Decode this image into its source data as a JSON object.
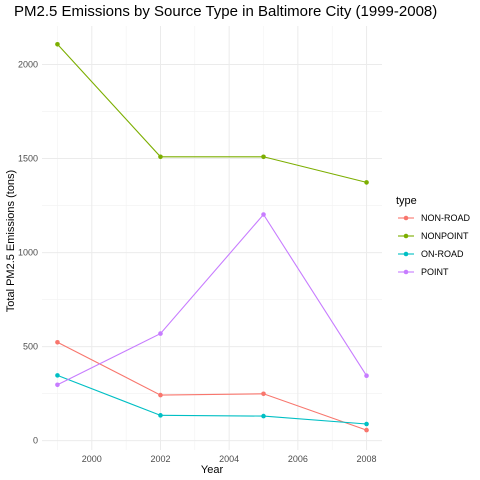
{
  "chart_data": {
    "type": "line",
    "title": "PM2.5 Emissions by Source Type in Baltimore City (1999-2008)",
    "xlabel": "Year",
    "ylabel": "Total PM2.5 Emissions (tons)",
    "x": [
      1999,
      2002,
      2005,
      2008
    ],
    "x_ticks": [
      2000,
      2002,
      2004,
      2006,
      2008
    ],
    "y_ticks": [
      0,
      500,
      1000,
      1500,
      2000
    ],
    "xlim": [
      1998.55,
      2008.45
    ],
    "ylim": [
      -50,
      2205
    ],
    "grid": true,
    "legend": {
      "title": "type",
      "position": "right"
    },
    "series": [
      {
        "name": "NON-ROAD",
        "color": "#F8766D",
        "values": [
          522.94,
          242.09,
          248.93,
          55.82
        ]
      },
      {
        "name": "NONPOINT",
        "color": "#7CAE00",
        "values": [
          2107.63,
          1509.5,
          1509.5,
          1373.21
        ]
      },
      {
        "name": "ON-ROAD",
        "color": "#00BFC4",
        "values": [
          346.82,
          134.31,
          130.43,
          88.28
        ]
      },
      {
        "name": "POINT",
        "color": "#C77CFF",
        "values": [
          296.8,
          569.26,
          1202.49,
          344.98
        ]
      }
    ]
  }
}
